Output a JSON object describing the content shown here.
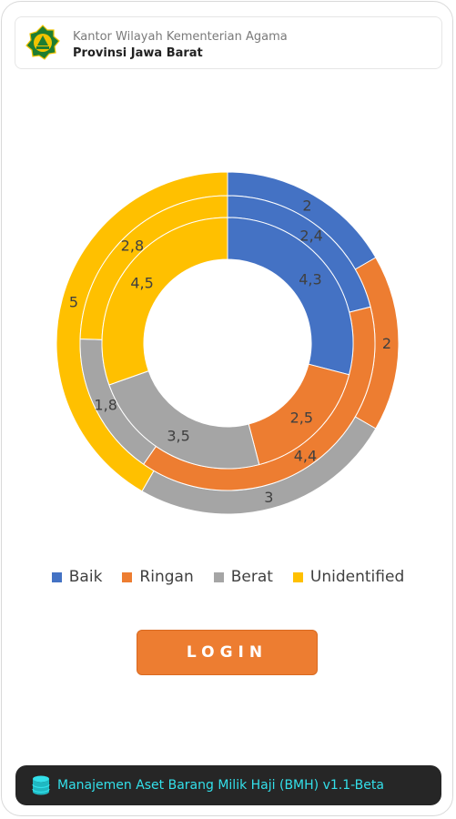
{
  "header": {
    "line1": "Kantor Wilayah Kementerian Agama",
    "line2": "Provinsi Jawa Barat",
    "logo_icon": "kemenag-emblem-icon"
  },
  "chart_data": {
    "type": "doughnut",
    "categories": [
      "Baik",
      "Ringan",
      "Berat",
      "Unidentified"
    ],
    "colors": [
      "#4472C4",
      "#ED7D31",
      "#A5A5A5",
      "#FFC000"
    ],
    "series": [
      {
        "values": [
          2,
          2,
          3,
          5
        ],
        "labels": [
          "2",
          "2",
          "3",
          "5"
        ]
      },
      {
        "values": [
          2.4,
          4.4,
          1.8,
          2.8
        ],
        "labels": [
          "2,4",
          "4,4",
          "1,8",
          "2,8"
        ]
      },
      {
        "values": [
          4.3,
          2.5,
          3.5,
          4.5
        ],
        "labels": [
          "4,3",
          "2,5",
          "3,5",
          "4,5"
        ]
      }
    ],
    "legend_position": "bottom"
  },
  "login": {
    "label": "LOGIN"
  },
  "footer": {
    "icon": "database-icon",
    "text": "Manajemen Aset Barang Milik Haji (BMH) v1.1-Beta"
  }
}
